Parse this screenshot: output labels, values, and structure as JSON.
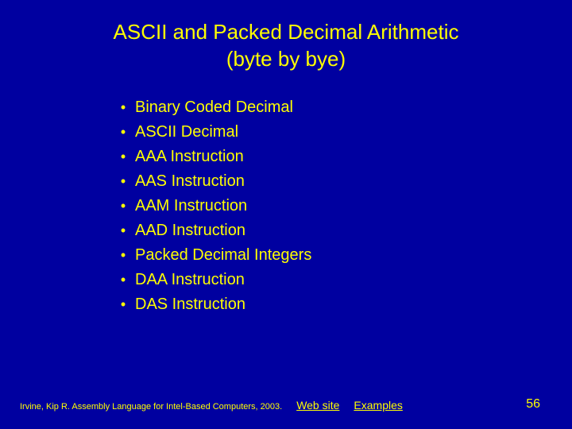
{
  "colors": {
    "background": "#0000a0",
    "text": "#ffff00",
    "link": "#ffff00"
  },
  "typography": {
    "title_fontsize": 26,
    "item_fontsize": 20,
    "footer_fontsize": 11,
    "link_fontsize": 14,
    "pagenum_fontsize": 16,
    "font_family": "Arial"
  },
  "title": {
    "line1": "ASCII and Packed Decimal Arithmetic",
    "line2": "(byte by bye)"
  },
  "bullet_char": "•",
  "items": [
    "Binary Coded Decimal",
    "ASCII Decimal",
    "AAA Instruction",
    "AAS Instruction",
    "AAM Instruction",
    "AAD Instruction",
    "Packed Decimal Integers",
    "DAA Instruction",
    "DAS Instruction"
  ],
  "footer": {
    "citation": "Irvine, Kip R. Assembly Language for Intel-Based Computers, 2003.",
    "links": [
      "Web site",
      "Examples"
    ],
    "page_number": "56"
  }
}
